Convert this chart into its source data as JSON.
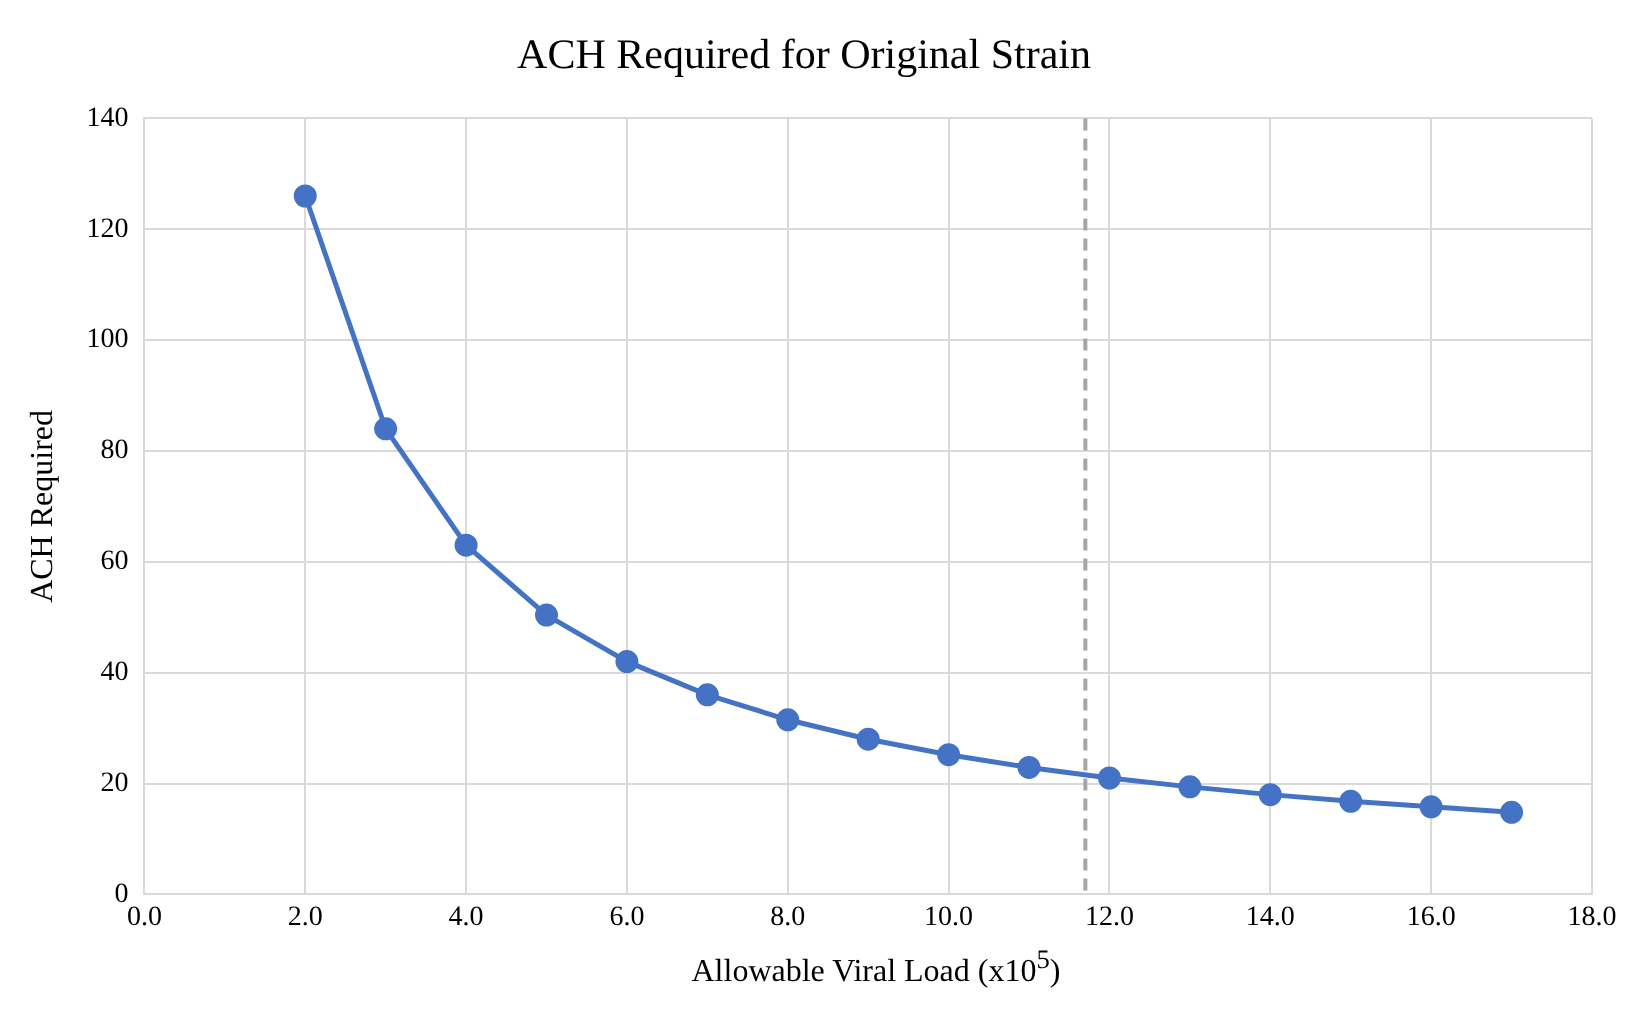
{
  "chart_data": {
    "type": "line",
    "title": "ACH Required for Original Strain",
    "xlabel": "Allowable Viral Load (x10$^{5}$)",
    "ylabel": "ACH Required",
    "x": [
      2,
      3,
      4,
      5,
      6,
      7,
      8,
      9,
      10,
      11,
      12,
      13,
      14,
      15,
      16,
      17
    ],
    "series": [
      {
        "color": "#4472c4",
        "values": [
          126,
          84,
          63,
          50.4,
          42,
          36,
          31.5,
          28,
          25.2,
          22.9,
          21,
          19.4,
          18,
          16.8,
          15.8,
          14.8
        ]
      }
    ],
    "xlim": [
      0,
      18
    ],
    "xticks": [
      {
        "value": 0,
        "label": "0.0"
      },
      {
        "value": 2,
        "label": "2.0"
      },
      {
        "value": 4,
        "label": "4.0"
      },
      {
        "value": 6,
        "label": "6.0"
      },
      {
        "value": 8,
        "label": "8.0"
      },
      {
        "value": 10,
        "label": "10.0"
      },
      {
        "value": 12,
        "label": "12.0"
      },
      {
        "value": 14,
        "label": "14.0"
      },
      {
        "value": 16,
        "label": "16.0"
      },
      {
        "value": 18,
        "label": "18.0"
      }
    ],
    "ylim": [
      0,
      140
    ],
    "yticks": [
      0,
      20,
      40,
      60,
      80,
      100,
      120,
      140
    ],
    "ref_lines": [
      {
        "axis": "x",
        "value": 11.7,
        "color": "#a5a5a5",
        "line_style": "dashed"
      }
    ],
    "grid": true,
    "legend": false,
    "marker": "circle",
    "line_style": "solid"
  }
}
